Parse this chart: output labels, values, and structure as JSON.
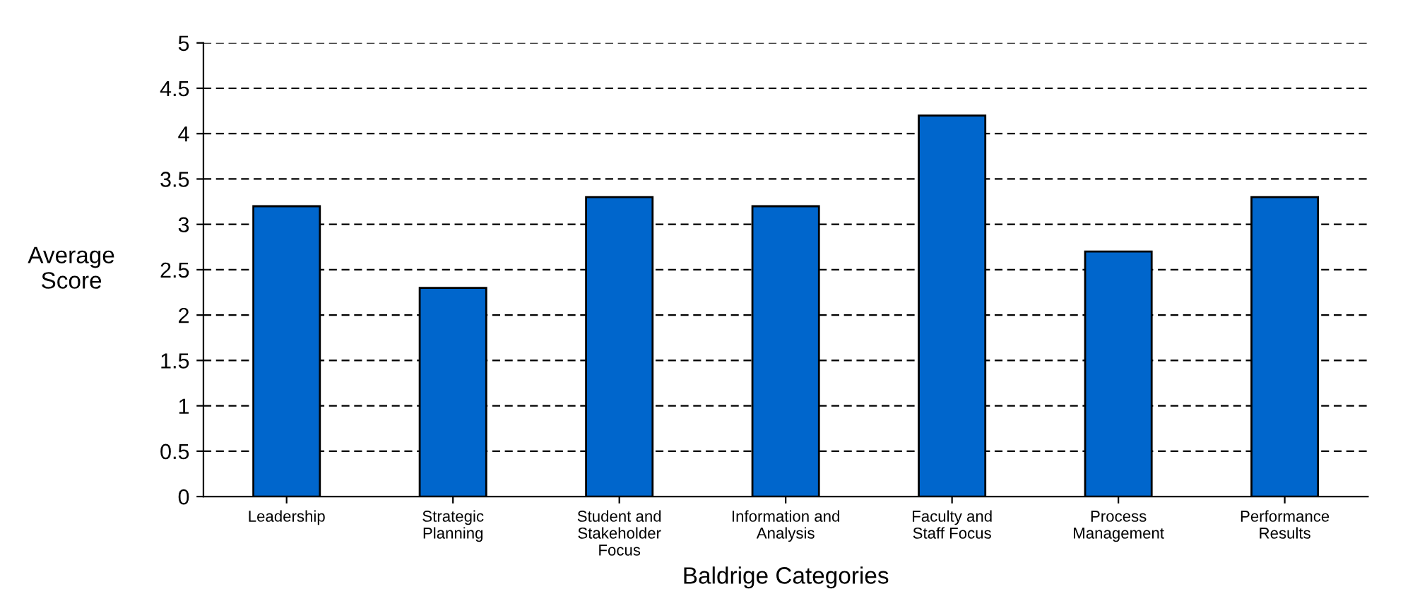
{
  "chart_data": {
    "type": "bar",
    "xlabel": "Baldrige Categories",
    "ylabel": "Average\nScore",
    "categories": [
      "Leadership",
      "Strategic Planning",
      "Student and Stakeholder Focus",
      "Information and Analysis",
      "Faculty and Staff Focus",
      "Process Management",
      "Performance Results"
    ],
    "values": [
      3.2,
      2.3,
      3.3,
      3.2,
      4.2,
      2.7,
      3.3
    ],
    "color": "#0066cc",
    "ylim": [
      0,
      5
    ],
    "yticks": [
      0,
      0.5,
      1,
      1.5,
      2,
      2.5,
      3,
      3.5,
      4,
      4.5,
      5
    ],
    "grid": "y",
    "legend": false
  }
}
